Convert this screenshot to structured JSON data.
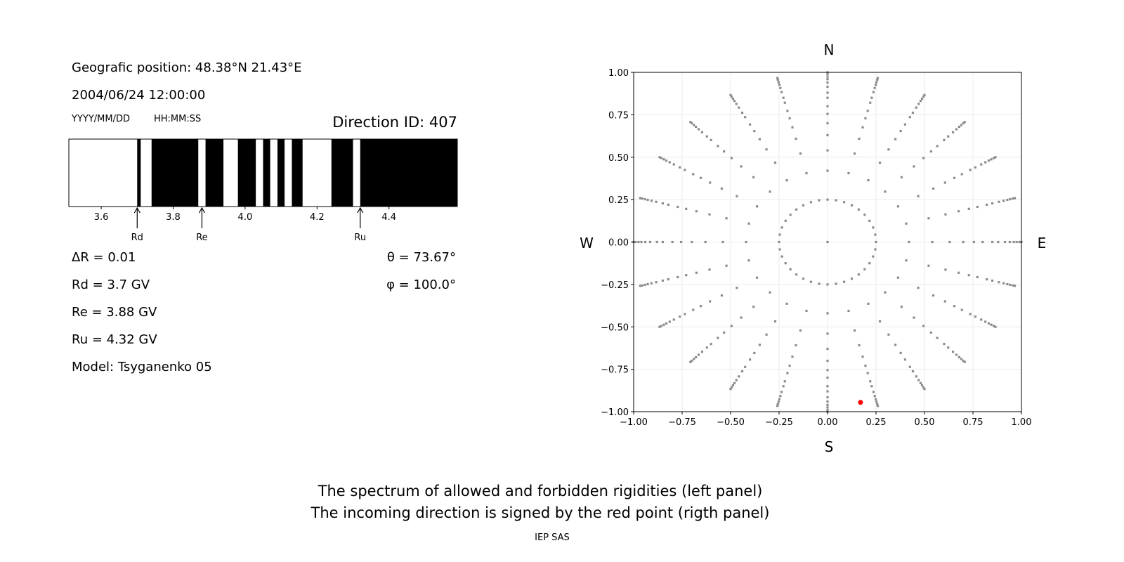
{
  "info": {
    "position": "Geografic position: 48.38°N 21.43°E",
    "datetime": "2004/06/24 12:00:00",
    "date_format": "YYYY/MM/DD",
    "time_format": "HH:MM:SS",
    "direction_id": "Direction ID: 407",
    "delta_r": "ΔR = 0.01",
    "rd": "Rd = 3.7 GV",
    "re": "Re = 3.88 GV",
    "ru": "Ru = 4.32 GV",
    "model": "Model: Tsyganenko 05",
    "theta": "θ = 73.67°",
    "phi": "φ = 100.0°"
  },
  "captions": {
    "line1": "The spectrum of allowed and forbidden rigidities (left panel)",
    "line2": "The incoming direction is signed by the red point (rigth panel)",
    "credit": "IEP SAS"
  },
  "chart_data": [
    {
      "type": "bar",
      "subtype": "rigidity-spectrum",
      "xlim": [
        3.51,
        4.59
      ],
      "xticks": [
        "3.6",
        "3.8",
        "4.0",
        "4.2",
        "4.4"
      ],
      "allowed_color": "#ffffff",
      "forbidden_color": "#000000",
      "bands": [
        {
          "from": 3.51,
          "to": 3.7,
          "state": "allowed"
        },
        {
          "from": 3.7,
          "to": 3.71,
          "state": "forbidden"
        },
        {
          "from": 3.71,
          "to": 3.74,
          "state": "allowed"
        },
        {
          "from": 3.74,
          "to": 3.87,
          "state": "forbidden"
        },
        {
          "from": 3.87,
          "to": 3.89,
          "state": "allowed"
        },
        {
          "from": 3.89,
          "to": 3.94,
          "state": "forbidden"
        },
        {
          "from": 3.94,
          "to": 3.98,
          "state": "allowed"
        },
        {
          "from": 3.98,
          "to": 4.03,
          "state": "forbidden"
        },
        {
          "from": 4.03,
          "to": 4.05,
          "state": "allowed"
        },
        {
          "from": 4.05,
          "to": 4.07,
          "state": "forbidden"
        },
        {
          "from": 4.07,
          "to": 4.09,
          "state": "allowed"
        },
        {
          "from": 4.09,
          "to": 4.11,
          "state": "forbidden"
        },
        {
          "from": 4.11,
          "to": 4.13,
          "state": "allowed"
        },
        {
          "from": 4.13,
          "to": 4.16,
          "state": "forbidden"
        },
        {
          "from": 4.16,
          "to": 4.24,
          "state": "allowed"
        },
        {
          "from": 4.24,
          "to": 4.3,
          "state": "forbidden"
        },
        {
          "from": 4.3,
          "to": 4.32,
          "state": "allowed"
        },
        {
          "from": 4.32,
          "to": 4.59,
          "state": "forbidden"
        }
      ],
      "markers": [
        {
          "label": "Rd",
          "value": 3.7
        },
        {
          "label": "Re",
          "value": 3.88
        },
        {
          "label": "Ru",
          "value": 4.32
        }
      ]
    },
    {
      "type": "scatter",
      "xlim": [
        -1,
        1
      ],
      "ylim": [
        -1,
        1
      ],
      "grid": true,
      "xticks": [
        "−1.00",
        "−0.75",
        "−0.50",
        "−0.25",
        "0.00",
        "0.25",
        "0.50",
        "0.75",
        "1.00"
      ],
      "yticks": [
        "1.00",
        "0.75",
        "0.50",
        "0.25",
        "0.00",
        "−0.25",
        "−0.50",
        "−0.75",
        "−1.00"
      ],
      "compass": {
        "n": "N",
        "s": "S",
        "w": "W",
        "e": "E"
      },
      "grid_point_color": "#8c8c8c",
      "direction_grid": {
        "center": [
          0,
          0
        ],
        "ring_radius": 0.25,
        "ring_step_deg": 10,
        "spoke_step_deg": 15,
        "spoke_radii": [
          0.42,
          0.54,
          0.63,
          0.7,
          0.755,
          0.8,
          0.85,
          0.88,
          0.915,
          0.94,
          0.96,
          0.975,
          0.99,
          1.0
        ]
      },
      "highlight": {
        "x": 0.17,
        "y": -0.945,
        "color": "#ff0000"
      }
    }
  ]
}
